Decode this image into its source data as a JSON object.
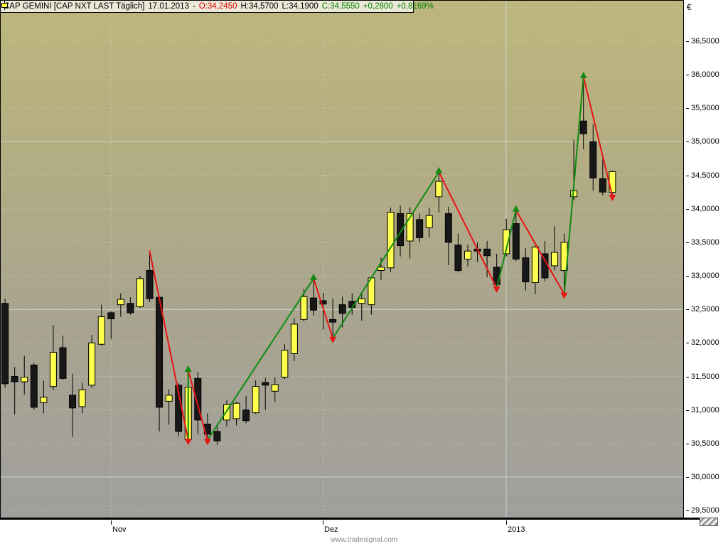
{
  "legend": {
    "instrument": "CAP GEMINI [CAP NXT LAST Täglich]",
    "date": "17.01.2013",
    "separator": "-",
    "open_label": "O:34,2450",
    "high_label": "H:34,5700",
    "low_label": "L:34,1900",
    "close_label": "C:34,5550",
    "change_abs": "+0,2800",
    "change_pct": "+0,8169%"
  },
  "watermark": "www.tradesignal.com",
  "y_axis": {
    "currency": "€",
    "labels": [
      "36,5000",
      "36,0000",
      "35,5000",
      "35,0000",
      "34,5000",
      "34,0000",
      "33,5000",
      "33,0000",
      "32,5000",
      "32,0000",
      "31,5000",
      "31,0000",
      "30,5000",
      "30,0000",
      "29,5000"
    ],
    "top_price": 36.5,
    "step": 0.5
  },
  "x_axis": {
    "marks": [
      {
        "label": "Nov",
        "x": 156,
        "style": "dotted"
      },
      {
        "label": "Dez",
        "x": 454,
        "style": "dotted"
      },
      {
        "label": "2013",
        "x": 712,
        "style": "solid"
      }
    ]
  },
  "colors": {
    "up_candle": "#ffff4d",
    "down_candle": "#181818",
    "candle_outline": "#000000",
    "zigzag_up": "#108a10",
    "zigzag_down": "#e81414",
    "grid_dotted": "#dde0c0",
    "grid_solid": "#cbdcd3",
    "legend_open": "#e00000",
    "legend_close": "#008000",
    "legend_bg": "#ece9d8"
  },
  "chart_data": {
    "type": "candlestick",
    "symbol": "CAP GEMINI",
    "feed": "CAP NXT LAST",
    "timeframe": "Täglich",
    "last_date": "17.01.2013",
    "last_bar": {
      "open": 34.245,
      "high": 34.57,
      "low": 34.19,
      "close": 34.555,
      "change": 0.28,
      "change_pct": 0.8169
    },
    "currency": "€",
    "ylim": [
      29.35,
      36.95
    ],
    "ytick_step": 0.5,
    "emphasized_gridlines": [
      35.0,
      32.5,
      30.0
    ],
    "x_marks": [
      "Nov",
      "Dez",
      "2013"
    ],
    "candles": [
      [
        32.59,
        32.66,
        31.33,
        31.39
      ],
      [
        31.5,
        31.64,
        30.93,
        31.42
      ],
      [
        31.42,
        31.81,
        31.23,
        31.49
      ],
      [
        31.67,
        31.7,
        31.0,
        31.04
      ],
      [
        31.11,
        31.44,
        30.95,
        31.19
      ],
      [
        31.35,
        32.27,
        31.3,
        31.86
      ],
      [
        31.93,
        32.11,
        31.45,
        31.47
      ],
      [
        31.22,
        31.54,
        30.6,
        31.03
      ],
      [
        31.05,
        31.4,
        30.95,
        31.3
      ],
      [
        31.37,
        32.12,
        31.33,
        32.0
      ],
      [
        31.98,
        32.57,
        31.96,
        32.39
      ],
      [
        32.45,
        32.47,
        32.06,
        32.36
      ],
      [
        32.57,
        32.74,
        32.39,
        32.65
      ],
      [
        32.59,
        32.68,
        32.42,
        32.45
      ],
      [
        32.54,
        33.0,
        32.52,
        32.96
      ],
      [
        33.08,
        33.37,
        32.61,
        32.66
      ],
      [
        32.68,
        32.7,
        30.68,
        31.04
      ],
      [
        31.13,
        31.31,
        30.78,
        31.22
      ],
      [
        31.37,
        31.4,
        30.61,
        30.68
      ],
      [
        30.56,
        31.59,
        30.55,
        31.34
      ],
      [
        31.47,
        31.57,
        30.64,
        30.85
      ],
      [
        30.79,
        30.95,
        30.55,
        30.64
      ],
      [
        30.68,
        30.78,
        30.48,
        30.54
      ],
      [
        30.85,
        31.15,
        30.75,
        31.08
      ],
      [
        30.87,
        31.12,
        30.77,
        31.1
      ],
      [
        31.0,
        31.21,
        30.8,
        30.84
      ],
      [
        30.96,
        31.44,
        30.94,
        31.35
      ],
      [
        31.41,
        31.48,
        31.0,
        31.37
      ],
      [
        31.28,
        31.49,
        31.12,
        31.38
      ],
      [
        31.49,
        31.98,
        31.46,
        31.89
      ],
      [
        31.84,
        32.37,
        31.73,
        32.28
      ],
      [
        32.35,
        32.81,
        32.32,
        32.69
      ],
      [
        32.67,
        32.96,
        32.41,
        32.49
      ],
      [
        32.63,
        32.75,
        32.2,
        32.58
      ],
      [
        32.35,
        32.66,
        32.07,
        32.31
      ],
      [
        32.57,
        32.69,
        32.23,
        32.44
      ],
      [
        32.62,
        32.74,
        32.42,
        32.53
      ],
      [
        32.59,
        32.76,
        32.33,
        32.66
      ],
      [
        32.57,
        32.98,
        32.42,
        32.97
      ],
      [
        33.08,
        33.27,
        32.94,
        33.13
      ],
      [
        33.12,
        34.02,
        33.06,
        33.95
      ],
      [
        33.93,
        34.05,
        33.29,
        33.45
      ],
      [
        33.52,
        34.02,
        33.26,
        33.93
      ],
      [
        33.84,
        33.93,
        33.5,
        33.57
      ],
      [
        33.72,
        34.02,
        33.57,
        33.9
      ],
      [
        34.18,
        34.55,
        33.95,
        34.41
      ],
      [
        33.93,
        34.03,
        33.16,
        33.5
      ],
      [
        33.46,
        33.63,
        33.05,
        33.08
      ],
      [
        33.25,
        33.46,
        33.14,
        33.37
      ],
      [
        33.4,
        33.5,
        33.21,
        33.37
      ],
      [
        33.4,
        33.52,
        32.98,
        33.3
      ],
      [
        33.13,
        33.33,
        32.82,
        32.87
      ],
      [
        33.33,
        33.85,
        33.29,
        33.69
      ],
      [
        33.78,
        33.98,
        33.22,
        33.25
      ],
      [
        33.27,
        33.41,
        32.78,
        32.91
      ],
      [
        32.9,
        33.45,
        32.73,
        33.43
      ],
      [
        33.33,
        33.52,
        32.92,
        32.97
      ],
      [
        33.15,
        33.74,
        33.08,
        33.35
      ],
      [
        33.08,
        33.63,
        32.73,
        33.5
      ],
      [
        34.18,
        35.03,
        34.13,
        34.27
      ],
      [
        35.31,
        35.97,
        34.89,
        35.12
      ],
      [
        35.0,
        35.26,
        34.27,
        34.46
      ],
      [
        34.45,
        34.75,
        34.2,
        34.25
      ],
      [
        34.245,
        34.57,
        34.19,
        34.555
      ]
    ],
    "zigzag": [
      {
        "bar": 16,
        "price": 33.37,
        "swing": "start"
      },
      {
        "bar": 20,
        "price": 30.55,
        "swing": "low"
      },
      {
        "bar": 20,
        "price": 31.59,
        "swing": "high"
      },
      {
        "bar": 22,
        "price": 30.55,
        "swing": "low"
      },
      {
        "bar": 33,
        "price": 32.96,
        "swing": "high"
      },
      {
        "bar": 35,
        "price": 32.07,
        "swing": "low"
      },
      {
        "bar": 46,
        "price": 34.55,
        "swing": "high"
      },
      {
        "bar": 52,
        "price": 32.82,
        "swing": "low"
      },
      {
        "bar": 54,
        "price": 33.98,
        "swing": "high"
      },
      {
        "bar": 59,
        "price": 32.73,
        "swing": "low"
      },
      {
        "bar": 61,
        "price": 35.97,
        "swing": "high"
      },
      {
        "bar": 64,
        "price": 34.19,
        "swing": "low"
      }
    ]
  }
}
